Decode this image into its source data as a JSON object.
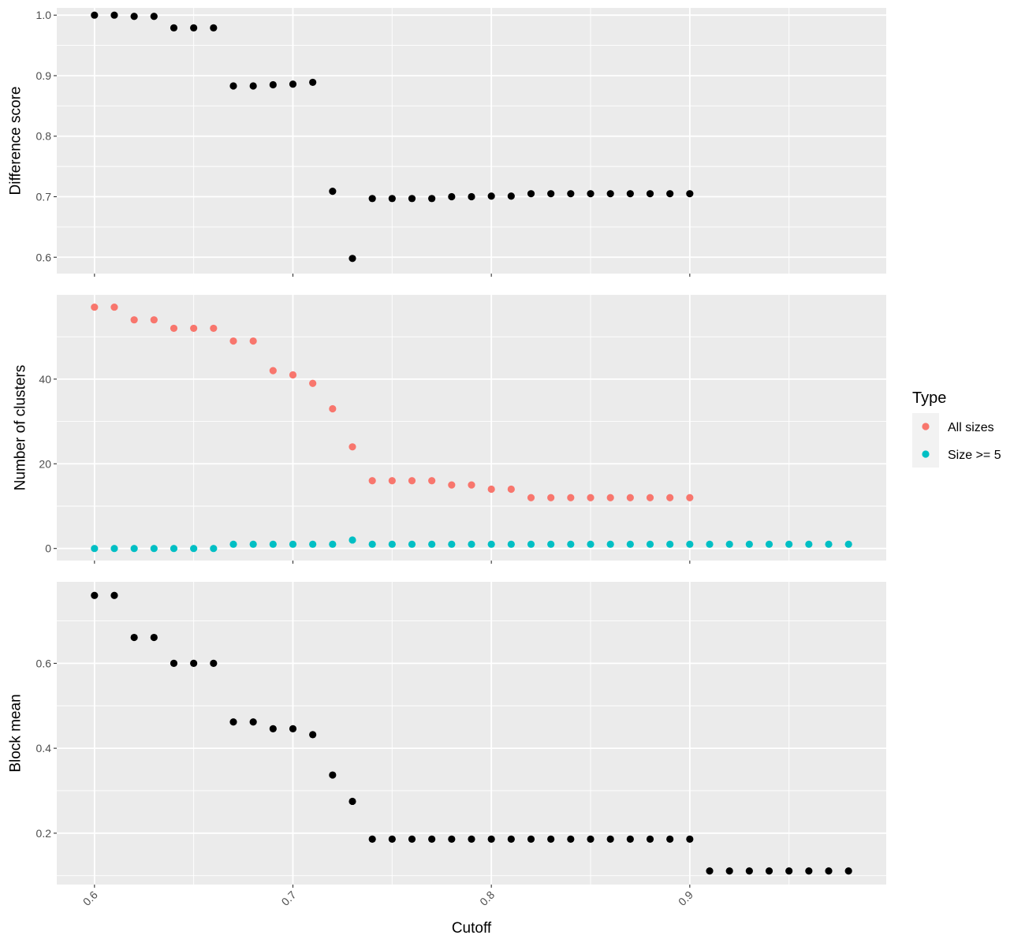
{
  "chart_data": [
    {
      "type": "scatter",
      "panel": "top",
      "ylabel": "Difference score",
      "ylim": [
        0.573,
        1.012
      ],
      "yticks": [
        0.6,
        0.7,
        0.8,
        0.9,
        1.0
      ],
      "ytick_labels": [
        "0.6",
        "0.7",
        "0.8",
        "0.9",
        "1.0"
      ],
      "series": [
        {
          "color": "#000000",
          "x": [
            0.6,
            0.61,
            0.62,
            0.63,
            0.64,
            0.65,
            0.66,
            0.67,
            0.68,
            0.69,
            0.7,
            0.71,
            0.72,
            0.73,
            0.74,
            0.75,
            0.76,
            0.77,
            0.78,
            0.79,
            0.8,
            0.81,
            0.82,
            0.83,
            0.84,
            0.85,
            0.86,
            0.87,
            0.88,
            0.89,
            0.9
          ],
          "y": [
            1.0,
            1.0,
            0.998,
            0.998,
            0.979,
            0.979,
            0.979,
            0.883,
            0.883,
            0.885,
            0.886,
            0.889,
            0.709,
            0.598,
            0.697,
            0.697,
            0.697,
            0.697,
            0.7,
            0.7,
            0.701,
            0.701,
            0.705,
            0.705,
            0.705,
            0.705,
            0.705,
            0.705,
            0.705,
            0.705,
            0.705
          ]
        }
      ]
    },
    {
      "type": "scatter",
      "panel": "middle",
      "ylabel": "Number of clusters",
      "ylim": [
        -2.85,
        59.9
      ],
      "yticks": [
        0,
        20,
        40
      ],
      "ytick_labels": [
        "0",
        "20",
        "40"
      ],
      "series": [
        {
          "name": "All sizes",
          "color": "#F8766D",
          "x": [
            0.6,
            0.61,
            0.62,
            0.63,
            0.64,
            0.65,
            0.66,
            0.67,
            0.68,
            0.69,
            0.7,
            0.71,
            0.72,
            0.73,
            0.74,
            0.75,
            0.76,
            0.77,
            0.78,
            0.79,
            0.8,
            0.81,
            0.82,
            0.83,
            0.84,
            0.85,
            0.86,
            0.87,
            0.88,
            0.89,
            0.9
          ],
          "y": [
            57,
            57,
            54,
            54,
            52,
            52,
            52,
            49,
            49,
            42,
            41,
            39,
            33,
            24,
            16,
            16,
            16,
            16,
            15,
            15,
            14,
            14,
            12,
            12,
            12,
            12,
            12,
            12,
            12,
            12,
            12
          ]
        },
        {
          "name": "Size >= 5",
          "color": "#00BFC4",
          "x": [
            0.6,
            0.61,
            0.62,
            0.63,
            0.64,
            0.65,
            0.66,
            0.67,
            0.68,
            0.69,
            0.7,
            0.71,
            0.72,
            0.73,
            0.74,
            0.75,
            0.76,
            0.77,
            0.78,
            0.79,
            0.8,
            0.81,
            0.82,
            0.83,
            0.84,
            0.85,
            0.86,
            0.87,
            0.88,
            0.89,
            0.9,
            0.91,
            0.92,
            0.93,
            0.94,
            0.95,
            0.96,
            0.97,
            0.98
          ],
          "y": [
            0,
            0,
            0,
            0,
            0,
            0,
            0,
            1,
            1,
            1,
            1,
            1,
            1,
            2,
            1,
            1,
            1,
            1,
            1,
            1,
            1,
            1,
            1,
            1,
            1,
            1,
            1,
            1,
            1,
            1,
            1,
            1,
            1,
            1,
            1,
            1,
            1,
            1,
            1
          ]
        }
      ]
    },
    {
      "type": "scatter",
      "panel": "bottom",
      "ylabel": "Block mean",
      "xlabel": "Cutoff",
      "ylim": [
        0.079,
        0.792
      ],
      "yticks": [
        0.2,
        0.4,
        0.6
      ],
      "ytick_labels": [
        "0.2",
        "0.4",
        "0.6"
      ],
      "series": [
        {
          "color": "#000000",
          "x": [
            0.6,
            0.61,
            0.62,
            0.63,
            0.64,
            0.65,
            0.66,
            0.67,
            0.68,
            0.69,
            0.7,
            0.71,
            0.72,
            0.73,
            0.74,
            0.75,
            0.76,
            0.77,
            0.78,
            0.79,
            0.8,
            0.81,
            0.82,
            0.83,
            0.84,
            0.85,
            0.86,
            0.87,
            0.88,
            0.89,
            0.9,
            0.91,
            0.92,
            0.93,
            0.94,
            0.95,
            0.96,
            0.97,
            0.98
          ],
          "y": [
            0.76,
            0.76,
            0.661,
            0.661,
            0.6,
            0.6,
            0.6,
            0.462,
            0.462,
            0.446,
            0.446,
            0.432,
            0.337,
            0.275,
            0.186,
            0.186,
            0.186,
            0.186,
            0.186,
            0.186,
            0.186,
            0.186,
            0.186,
            0.186,
            0.186,
            0.186,
            0.186,
            0.186,
            0.186,
            0.186,
            0.186,
            0.111,
            0.111,
            0.111,
            0.111,
            0.111,
            0.111,
            0.111,
            0.111
          ]
        }
      ]
    }
  ],
  "x_axis": {
    "label": "Cutoff",
    "xlim": [
      0.581,
      0.999
    ],
    "ticks": [
      0.6,
      0.7,
      0.8,
      0.9
    ],
    "tick_labels": [
      "0.6",
      "0.7",
      "0.8",
      "0.9"
    ]
  },
  "legend": {
    "title": "Type",
    "placement": "right",
    "items": [
      {
        "label": "All sizes",
        "color": "#F8766D"
      },
      {
        "label": "Size >= 5",
        "color": "#00BFC4"
      }
    ]
  },
  "style": {
    "panel_background": "#EBEBEB",
    "grid_color": "#FFFFFF",
    "grid": true
  }
}
